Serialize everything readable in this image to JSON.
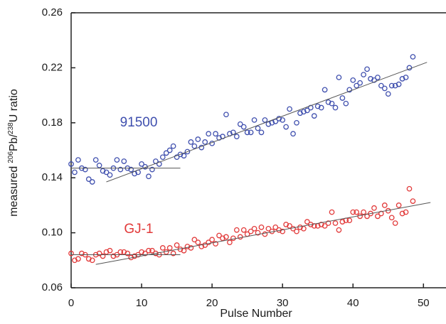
{
  "chart_data": {
    "type": "scatter",
    "x_label": "Pulse Number",
    "y_label": {
      "prefix": "measured",
      "sup1": "206",
      "mid": "Pb/",
      "sup2": "238",
      "suffix": "U ratio"
    },
    "xlim": [
      0,
      53.2
    ],
    "ylim": [
      0.06,
      0.26
    ],
    "xticks": [
      0,
      10,
      20,
      30,
      40,
      50
    ],
    "yticks": [
      0.06,
      {
        "value": 0.1,
        "label": "0.10"
      },
      0.14,
      0.18,
      0.22,
      0.26
    ],
    "x": [
      0,
      0.5,
      1,
      1.5,
      2,
      2.5,
      3,
      3.5,
      4,
      4.5,
      5,
      5.5,
      6,
      6.5,
      7,
      7.5,
      8,
      8.5,
      9,
      9.5,
      10,
      10.5,
      11,
      11.5,
      12,
      12.5,
      13,
      13.5,
      14,
      14.5,
      15,
      15.5,
      16,
      16.5,
      17,
      17.5,
      18,
      18.5,
      19,
      19.5,
      20,
      20.5,
      21,
      21.5,
      22,
      22.5,
      23,
      23.5,
      24,
      24.5,
      25,
      25.5,
      26,
      26.5,
      27,
      27.5,
      28,
      28.5,
      29,
      29.5,
      30,
      30.5,
      31,
      31.5,
      32,
      32.5,
      33,
      33.5,
      34,
      34.5,
      35,
      35.5,
      36,
      36.5,
      37,
      37.5,
      38,
      38.5,
      39,
      39.5,
      40,
      40.5,
      41,
      41.5,
      42,
      42.5,
      43,
      43.5,
      44,
      44.5,
      45,
      45.5,
      46,
      46.5,
      47,
      47.5,
      48,
      48.5
    ],
    "fit_color": "#555555",
    "series": [
      {
        "name": "91500",
        "color": "#3f4fae",
        "values": [
          0.15,
          0.144,
          0.153,
          0.147,
          0.146,
          0.139,
          0.137,
          0.153,
          0.149,
          0.145,
          0.144,
          0.142,
          0.147,
          0.153,
          0.146,
          0.152,
          0.147,
          0.146,
          0.143,
          0.144,
          0.15,
          0.148,
          0.141,
          0.146,
          0.152,
          0.15,
          0.155,
          0.158,
          0.16,
          0.163,
          0.155,
          0.157,
          0.156,
          0.159,
          0.166,
          0.163,
          0.168,
          0.162,
          0.166,
          0.172,
          0.165,
          0.172,
          0.169,
          0.17,
          0.186,
          0.172,
          0.173,
          0.17,
          0.179,
          0.177,
          0.173,
          0.173,
          0.182,
          0.176,
          0.173,
          0.182,
          0.179,
          0.18,
          0.181,
          0.183,
          0.182,
          0.177,
          0.19,
          0.172,
          0.18,
          0.187,
          0.188,
          0.189,
          0.191,
          0.185,
          0.192,
          0.191,
          0.204,
          0.195,
          0.194,
          0.191,
          0.213,
          0.198,
          0.194,
          0.204,
          0.211,
          0.207,
          0.209,
          0.215,
          0.219,
          0.212,
          0.211,
          0.213,
          0.207,
          0.205,
          0.201,
          0.207,
          0.207,
          0.208,
          0.212,
          0.213,
          0.22,
          0.228
        ],
        "fits": [
          {
            "x": [
              0,
              15.5
            ],
            "y": [
              0.147,
              0.147
            ]
          },
          {
            "x": [
              5,
              50.5
            ],
            "y": [
              0.137,
              0.224
            ]
          }
        ]
      },
      {
        "name": "GJ-1",
        "color": "#e23a3a",
        "values": [
          0.085,
          0.08,
          0.081,
          0.085,
          0.084,
          0.081,
          0.08,
          0.084,
          0.085,
          0.083,
          0.086,
          0.087,
          0.083,
          0.084,
          0.086,
          0.086,
          0.085,
          0.082,
          0.083,
          0.084,
          0.086,
          0.085,
          0.087,
          0.087,
          0.085,
          0.084,
          0.089,
          0.086,
          0.089,
          0.085,
          0.091,
          0.088,
          0.087,
          0.09,
          0.089,
          0.095,
          0.093,
          0.09,
          0.091,
          0.093,
          0.095,
          0.092,
          0.098,
          0.096,
          0.097,
          0.093,
          0.096,
          0.102,
          0.097,
          0.102,
          0.099,
          0.101,
          0.103,
          0.1,
          0.104,
          0.099,
          0.103,
          0.101,
          0.104,
          0.102,
          0.101,
          0.106,
          0.105,
          0.103,
          0.101,
          0.104,
          0.103,
          0.108,
          0.106,
          0.105,
          0.105,
          0.106,
          0.105,
          0.107,
          0.115,
          0.107,
          0.102,
          0.108,
          0.109,
          0.109,
          0.115,
          0.115,
          0.112,
          0.115,
          0.112,
          0.114,
          0.118,
          0.112,
          0.114,
          0.12,
          0.116,
          0.111,
          0.107,
          0.12,
          0.114,
          0.115,
          0.132,
          0.123
        ],
        "fits": [
          {
            "x": [
              0,
              15.5
            ],
            "y": [
              0.084,
              0.084
            ]
          },
          {
            "x": [
              3.5,
              51
            ],
            "y": [
              0.077,
              0.122
            ]
          }
        ]
      }
    ]
  }
}
